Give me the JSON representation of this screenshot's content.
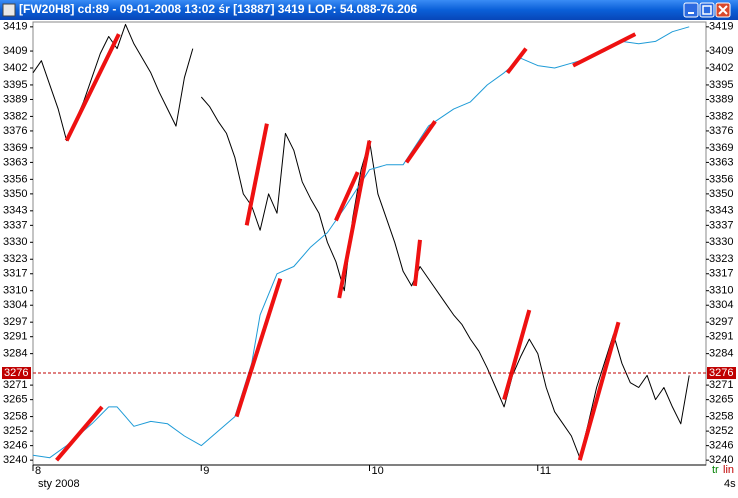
{
  "window_title": "[FW20H8] cd:89 - 09-01-2008  13:02 śr [13887]   3419  LOP: 54.088-76.206",
  "chart_data": {
    "type": "line",
    "xlim": [
      8,
      12
    ],
    "xticks": [
      8,
      9,
      10,
      11
    ],
    "x_period_label": "sty 2008",
    "ylim": [
      3238,
      3421
    ],
    "yticks": [
      3240,
      3246,
      3252,
      3258,
      3265,
      3271,
      3284,
      3291,
      3297,
      3304,
      3310,
      3317,
      3323,
      3330,
      3337,
      3343,
      3350,
      3356,
      3363,
      3369,
      3376,
      3382,
      3389,
      3395,
      3402,
      3409,
      3419
    ],
    "last_price": 3276,
    "last_price_color": "#c00000",
    "series": [
      {
        "color": "#000000",
        "x": [
          8.0,
          8.05,
          8.1,
          8.15,
          8.2,
          8.25,
          8.3,
          8.35,
          8.4,
          8.45,
          8.5,
          8.55,
          8.6,
          8.7,
          8.75,
          8.8,
          8.85,
          8.9,
          8.95,
          8.97,
          9.0,
          9.05,
          9.1,
          9.15,
          9.2,
          9.25,
          9.3,
          9.35,
          9.4,
          9.45,
          9.5,
          9.55,
          9.6,
          9.65,
          9.7,
          9.75,
          9.8,
          9.85,
          9.9,
          9.95,
          10.0,
          10.05,
          10.1,
          10.15,
          10.2,
          10.25,
          10.3,
          10.35,
          10.45,
          10.5,
          10.55,
          10.6,
          10.65,
          10.7,
          10.75,
          10.8,
          10.85,
          10.9,
          10.95,
          11.0,
          11.05,
          11.1,
          11.15,
          11.2,
          11.25,
          11.3,
          11.35,
          11.45,
          11.5,
          11.55,
          11.6,
          11.65,
          11.7,
          11.75,
          11.8,
          11.85,
          11.9
        ],
        "values": [
          3400,
          3405,
          3395,
          3385,
          3372,
          3380,
          3388,
          3398,
          3408,
          3415,
          3410,
          3420,
          3412,
          3400,
          3392,
          3385,
          3378,
          3398,
          3410,
          null,
          3390,
          3386,
          3380,
          3375,
          3365,
          3350,
          3345,
          3335,
          3350,
          3342,
          3375,
          3368,
          3355,
          3348,
          3342,
          3330,
          3322,
          3310,
          3340,
          3360,
          3372,
          3350,
          3340,
          3330,
          3318,
          3312,
          3320,
          3315,
          3305,
          3300,
          3296,
          3290,
          3285,
          3278,
          3270,
          3262,
          3275,
          3283,
          3290,
          3284,
          3270,
          3260,
          3255,
          3250,
          3241,
          3255,
          3270,
          3292,
          3280,
          3272,
          3270,
          3275,
          3265,
          3270,
          3262,
          3255,
          3275
        ]
      },
      {
        "color": "#1e9bd7",
        "x": [
          8.0,
          8.1,
          8.2,
          8.35,
          8.45,
          8.5,
          8.55,
          8.6,
          8.7,
          8.8,
          8.9,
          9.0,
          9.1,
          9.2,
          9.3,
          9.35,
          9.45,
          9.55,
          9.65,
          9.75,
          9.85,
          10.0,
          10.1,
          10.2,
          10.35,
          10.5,
          10.6,
          10.7,
          10.8,
          10.9,
          11.0,
          11.1,
          11.2,
          11.3,
          11.4,
          11.5,
          11.6,
          11.7,
          11.8,
          11.9
        ],
        "values": [
          3242,
          3241,
          3246,
          3255,
          3262,
          3262,
          3258,
          3254,
          3256,
          3255,
          3250,
          3246,
          3252,
          3258,
          3280,
          3300,
          3317,
          3320,
          3328,
          3334,
          3344,
          3360,
          3362,
          3362,
          3378,
          3385,
          3388,
          3395,
          3400,
          3406,
          3403,
          3402,
          3404,
          3406,
          3409,
          3413,
          3412,
          3413,
          3417,
          3419
        ]
      }
    ],
    "trendline_color": "#ee1111",
    "trendlines": [
      {
        "x": [
          8.14,
          8.41
        ],
        "values": [
          3240,
          3262
        ]
      },
      {
        "x": [
          8.2,
          8.51
        ],
        "values": [
          3372,
          3416
        ]
      },
      {
        "x": [
          9.27,
          9.39
        ],
        "values": [
          3337,
          3379
        ]
      },
      {
        "x": [
          9.21,
          9.47
        ],
        "values": [
          3258,
          3315
        ]
      },
      {
        "x": [
          9.82,
          10.0
        ],
        "values": [
          3307,
          3372
        ]
      },
      {
        "x": [
          9.8,
          9.93
        ],
        "values": [
          3339,
          3359
        ]
      },
      {
        "x": [
          10.27,
          10.3
        ],
        "values": [
          3312,
          3331
        ]
      },
      {
        "x": [
          10.22,
          10.39
        ],
        "values": [
          3363,
          3380
        ]
      },
      {
        "x": [
          10.8,
          10.95
        ],
        "values": [
          3265,
          3302
        ]
      },
      {
        "x": [
          10.82,
          10.93
        ],
        "values": [
          3400,
          3410
        ]
      },
      {
        "x": [
          11.25,
          11.48
        ],
        "values": [
          3240,
          3297
        ]
      },
      {
        "x": [
          11.21,
          11.58
        ],
        "values": [
          3403,
          3416
        ]
      }
    ],
    "status": {
      "tr": "tr",
      "scale": "lin",
      "interval": "4s"
    }
  }
}
